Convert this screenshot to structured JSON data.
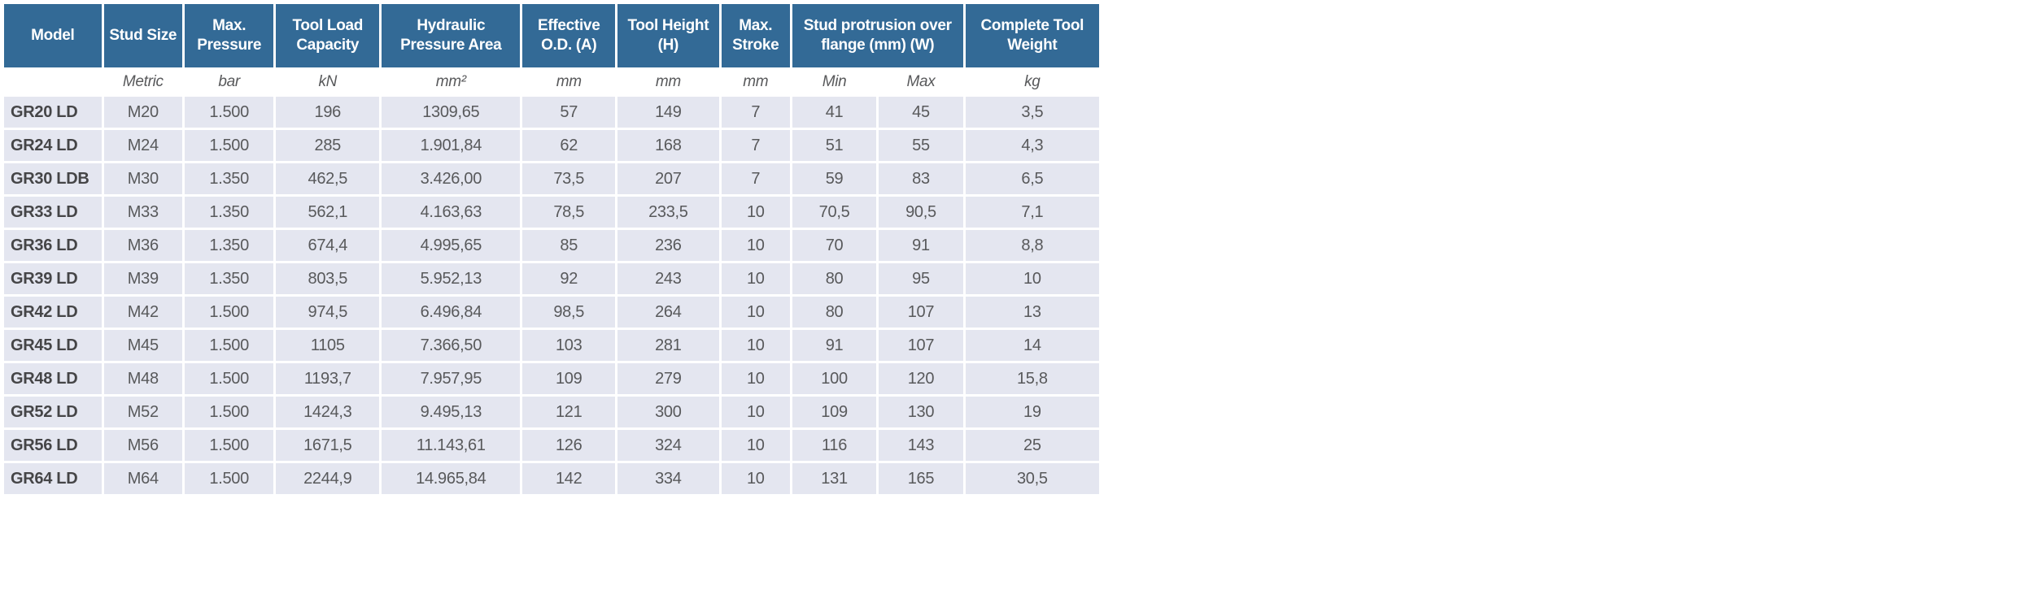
{
  "colors": {
    "header_bg": "#336a96",
    "header_text": "#ffffff",
    "row_bg": "#e4e6f0",
    "cell_text": "#58595b",
    "model_text": "#454547",
    "page_bg": "#ffffff"
  },
  "table": {
    "columns": [
      {
        "label": "Model"
      },
      {
        "label": "Stud Size"
      },
      {
        "label": "Max. Pressure"
      },
      {
        "label": "Tool Load Capacity"
      },
      {
        "label": "Hydraulic Pressure Area"
      },
      {
        "label": "Effective O.D. (A)"
      },
      {
        "label": "Tool Height (H)"
      },
      {
        "label": "Max. Stroke"
      },
      {
        "label": "Stud protrusion over flange (mm) (W)"
      },
      {
        "label": "Complete Tool Weight"
      }
    ],
    "units": [
      "",
      "Metric",
      "bar",
      "kN",
      "mm²",
      "mm",
      "mm",
      "mm",
      "Min",
      "Max",
      "kg"
    ],
    "rows": [
      [
        "GR20 LD",
        "M20",
        "1.500",
        "196",
        "1309,65",
        "57",
        "149",
        "7",
        "41",
        "45",
        "3,5"
      ],
      [
        "GR24 LD",
        "M24",
        "1.500",
        "285",
        "1.901,84",
        "62",
        "168",
        "7",
        "51",
        "55",
        "4,3"
      ],
      [
        "GR30 LDB",
        "M30",
        "1.350",
        "462,5",
        "3.426,00",
        "73,5",
        "207",
        "7",
        "59",
        "83",
        "6,5"
      ],
      [
        "GR33 LD",
        "M33",
        "1.350",
        "562,1",
        "4.163,63",
        "78,5",
        "233,5",
        "10",
        "70,5",
        "90,5",
        "7,1"
      ],
      [
        "GR36 LD",
        "M36",
        "1.350",
        "674,4",
        "4.995,65",
        "85",
        "236",
        "10",
        "70",
        "91",
        "8,8"
      ],
      [
        "GR39 LD",
        "M39",
        "1.350",
        "803,5",
        "5.952,13",
        "92",
        "243",
        "10",
        "80",
        "95",
        "10"
      ],
      [
        "GR42 LD",
        "M42",
        "1.500",
        "974,5",
        "6.496,84",
        "98,5",
        "264",
        "10",
        "80",
        "107",
        "13"
      ],
      [
        "GR45 LD",
        "M45",
        "1.500",
        "1105",
        "7.366,50",
        "103",
        "281",
        "10",
        "91",
        "107",
        "14"
      ],
      [
        "GR48 LD",
        "M48",
        "1.500",
        "1193,7",
        "7.957,95",
        "109",
        "279",
        "10",
        "100",
        "120",
        "15,8"
      ],
      [
        "GR52 LD",
        "M52",
        "1.500",
        "1424,3",
        "9.495,13",
        "121",
        "300",
        "10",
        "109",
        "130",
        "19"
      ],
      [
        "GR56 LD",
        "M56",
        "1.500",
        "1671,5",
        "11.143,61",
        "126",
        "324",
        "10",
        "116",
        "143",
        "25"
      ],
      [
        "GR64 LD",
        "M64",
        "1.500",
        "2244,9",
        "14.965,84",
        "142",
        "334",
        "10",
        "131",
        "165",
        "30,5"
      ]
    ]
  }
}
